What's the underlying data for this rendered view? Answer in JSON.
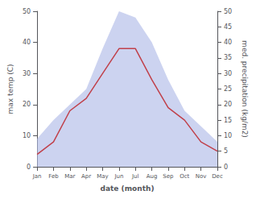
{
  "chart_data": {
    "type": "line",
    "xlabel": "date (month)",
    "ylabel": "max temp (C)",
    "y2label": "med. precipitation (kg/m2)",
    "categories": [
      "Jan",
      "Feb",
      "Mar",
      "Apr",
      "May",
      "Jun",
      "Jul",
      "Aug",
      "Sep",
      "Oct",
      "Nov",
      "Dec"
    ],
    "series": [
      {
        "type": "area",
        "color": "#b0bce8",
        "axis": "y2",
        "values": [
          9,
          15,
          20,
          25,
          38,
          50,
          48,
          40,
          28,
          18,
          13,
          8
        ]
      },
      {
        "type": "line",
        "color": "#c0404a",
        "values": [
          4,
          8,
          18,
          22,
          30,
          38,
          38,
          28,
          19,
          15,
          8,
          5
        ]
      }
    ],
    "ylim": [
      0,
      50
    ],
    "yticks": [
      0,
      10,
      20,
      30,
      40,
      50
    ],
    "y2lim": [
      0,
      50
    ],
    "y2ticks": [
      0,
      5,
      10,
      15,
      20,
      25,
      30,
      35,
      40,
      45,
      50
    ],
    "grid": false
  }
}
